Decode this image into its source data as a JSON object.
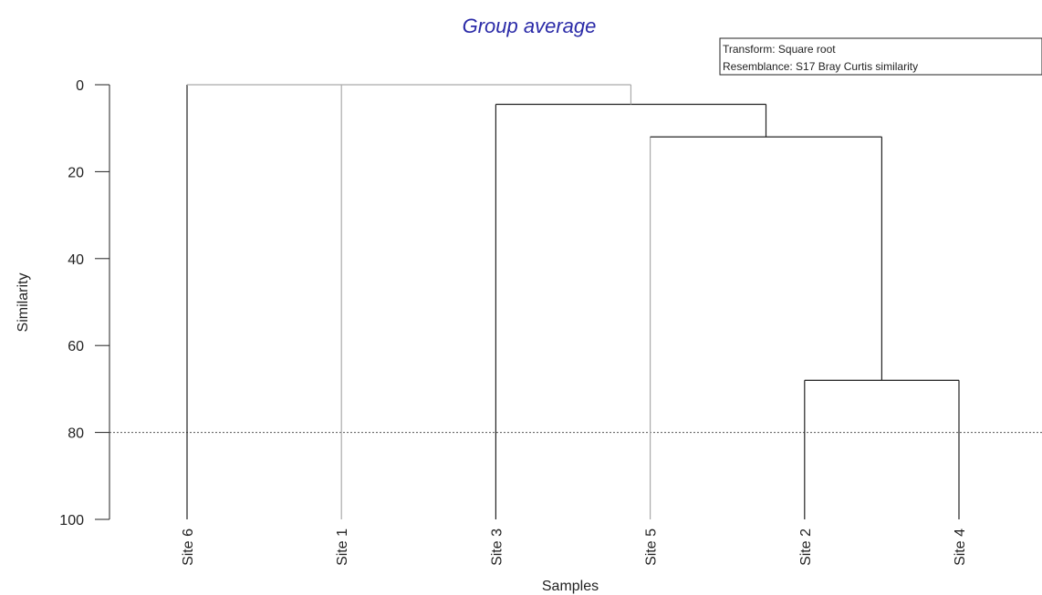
{
  "chart_data": {
    "type": "dendrogram",
    "title": "Group average",
    "xlabel": "Samples",
    "ylabel": "Similarity",
    "ylim": [
      0,
      100
    ],
    "yticks": [
      0,
      20,
      40,
      60,
      80,
      100
    ],
    "cut_line": 80,
    "leaves": [
      "Site 6",
      "Site 1",
      "Site 3",
      "Site 5",
      "Site 2",
      "Site 4"
    ],
    "merges": [
      {
        "members": [
          "Site 2",
          "Site 4"
        ],
        "similarity": 68
      },
      {
        "members": [
          "Site 5",
          "Site 2",
          "Site 4"
        ],
        "similarity": 12
      },
      {
        "members": [
          "Site 3",
          "Site 5",
          "Site 2",
          "Site 4"
        ],
        "similarity": 4.5
      },
      {
        "members": [
          "Site 6",
          "Site 1",
          "Site 3",
          "Site 5",
          "Site 2",
          "Site 4"
        ],
        "similarity": 0
      }
    ],
    "info_box": [
      "Transform: Square root",
      "Resemblance: S17 Bray Curtis similarity"
    ],
    "colors": {
      "title": "#2b2ba8",
      "line_dark": "#222222",
      "line_light": "#aaaaaa"
    }
  }
}
